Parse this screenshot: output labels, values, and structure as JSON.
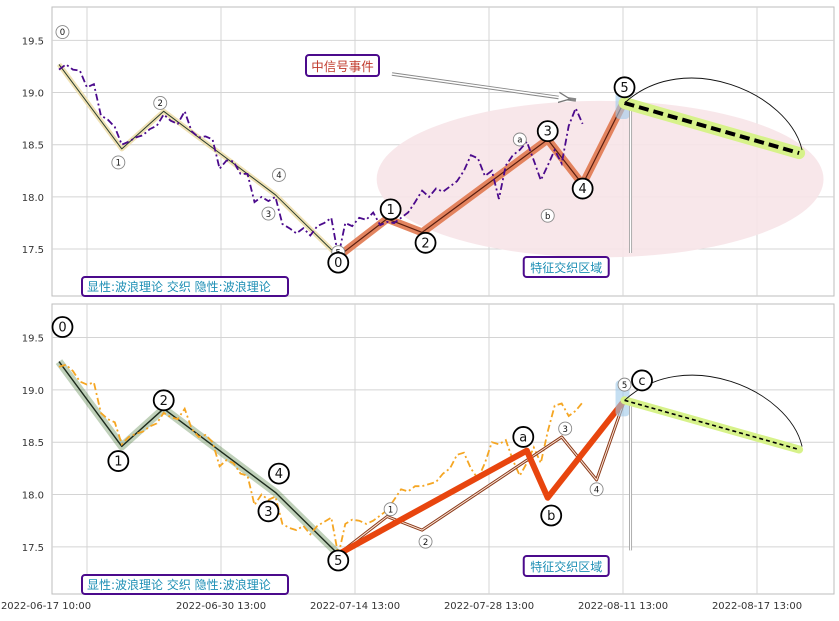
{
  "chart_data": {
    "type": "line",
    "x_tick_labels": [
      "2022-06-17 10:00",
      "2022-06-30 13:00",
      "2022-07-14 13:00",
      "2022-07-28 13:00",
      "2022-08-11 13:00",
      "2022-08-17 13:00"
    ],
    "y_ticks": [
      17.5,
      18.0,
      18.5,
      19.0,
      19.5
    ],
    "ylim": [
      17.05,
      19.82
    ],
    "xlim": [
      -1,
      111
    ],
    "grid": true,
    "colors": {
      "zigzag_top": "#e0784f",
      "zigzag_bottom": "#e8450e",
      "wave_glow": "#4a7a3a",
      "forecast": "#d7f28a",
      "dashdot_top": "#4b0a8c",
      "dashdot_bottom": "#f5a623",
      "ellipse": "#f7e4e8",
      "label_box": "#4b0a8c",
      "label_text": "#1e8fb5",
      "event_text": "#c0392b"
    },
    "price_top": [
      [
        0,
        19.22
      ],
      [
        1,
        19.27
      ],
      [
        2,
        19.22
      ],
      [
        3,
        19.21
      ],
      [
        4,
        19.05
      ],
      [
        5,
        19.08
      ],
      [
        6,
        18.78
      ],
      [
        7,
        18.74
      ],
      [
        8,
        18.67
      ],
      [
        9,
        18.5
      ],
      [
        10,
        18.53
      ],
      [
        11,
        18.57
      ],
      [
        12,
        18.59
      ],
      [
        13,
        18.65
      ],
      [
        14,
        18.68
      ],
      [
        15,
        18.79
      ],
      [
        16,
        18.73
      ],
      [
        17,
        18.7
      ],
      [
        18,
        18.82
      ],
      [
        19,
        18.63
      ],
      [
        20,
        18.57
      ],
      [
        21,
        18.58
      ],
      [
        22,
        18.55
      ],
      [
        23,
        18.27
      ],
      [
        24,
        18.35
      ],
      [
        25,
        18.34
      ],
      [
        26,
        18.22
      ],
      [
        27,
        18.22
      ],
      [
        28,
        17.95
      ],
      [
        29,
        18.0
      ],
      [
        30,
        17.96
      ],
      [
        31,
        18.0
      ],
      [
        32,
        17.74
      ],
      [
        33,
        17.7
      ],
      [
        34,
        17.65
      ],
      [
        35,
        17.7
      ],
      [
        36,
        17.63
      ],
      [
        37,
        17.72
      ],
      [
        38,
        17.75
      ],
      [
        39,
        17.8
      ],
      [
        40,
        17.43
      ],
      [
        41,
        17.75
      ],
      [
        42,
        17.72
      ],
      [
        43,
        17.8
      ],
      [
        44,
        17.78
      ],
      [
        45,
        17.85
      ],
      [
        46,
        17.73
      ],
      [
        47,
        17.76
      ],
      [
        48,
        17.75
      ],
      [
        49,
        17.8
      ],
      [
        50,
        17.85
      ],
      [
        51,
        17.95
      ],
      [
        52,
        18.06
      ],
      [
        53,
        18.0
      ],
      [
        54,
        18.08
      ],
      [
        55,
        18.05
      ],
      [
        56,
        18.1
      ],
      [
        57,
        18.15
      ],
      [
        58,
        18.25
      ],
      [
        59,
        18.4
      ],
      [
        60,
        18.37
      ],
      [
        61,
        18.2
      ],
      [
        62,
        18.25
      ],
      [
        63,
        17.98
      ],
      [
        64,
        18.3
      ],
      [
        65,
        18.4
      ],
      [
        66,
        18.45
      ],
      [
        67,
        18.53
      ],
      [
        68,
        18.35
      ],
      [
        69,
        18.16
      ],
      [
        70,
        18.3
      ],
      [
        71,
        18.45
      ],
      [
        72,
        18.32
      ],
      [
        73,
        18.68
      ],
      [
        74,
        18.85
      ],
      [
        75,
        18.7
      ]
    ],
    "price_bottom": [
      [
        0,
        19.22
      ],
      [
        1,
        19.24
      ],
      [
        2,
        19.18
      ],
      [
        3,
        19.08
      ],
      [
        4,
        19.05
      ],
      [
        5,
        19.07
      ],
      [
        6,
        18.78
      ],
      [
        7,
        18.72
      ],
      [
        8,
        18.69
      ],
      [
        9,
        18.48
      ],
      [
        10,
        18.55
      ],
      [
        11,
        18.58
      ],
      [
        12,
        18.6
      ],
      [
        13,
        18.65
      ],
      [
        14,
        18.68
      ],
      [
        15,
        18.78
      ],
      [
        16,
        18.74
      ],
      [
        17,
        18.72
      ],
      [
        18,
        18.82
      ],
      [
        19,
        18.63
      ],
      [
        20,
        18.55
      ],
      [
        21,
        18.57
      ],
      [
        22,
        18.5
      ],
      [
        23,
        18.27
      ],
      [
        24,
        18.33
      ],
      [
        25,
        18.3
      ],
      [
        26,
        18.2
      ],
      [
        27,
        18.18
      ],
      [
        28,
        17.9
      ],
      [
        29,
        18.0
      ],
      [
        30,
        17.95
      ],
      [
        31,
        17.98
      ],
      [
        32,
        17.72
      ],
      [
        33,
        17.68
      ],
      [
        34,
        17.66
      ],
      [
        35,
        17.7
      ],
      [
        36,
        17.62
      ],
      [
        37,
        17.7
      ],
      [
        38,
        17.74
      ],
      [
        39,
        17.78
      ],
      [
        40,
        17.42
      ],
      [
        41,
        17.72
      ],
      [
        42,
        17.76
      ],
      [
        43,
        17.75
      ],
      [
        44,
        17.72
      ],
      [
        45,
        17.75
      ],
      [
        46,
        17.8
      ],
      [
        47,
        17.85
      ],
      [
        48,
        17.95
      ],
      [
        49,
        18.05
      ],
      [
        50,
        18.03
      ],
      [
        51,
        18.08
      ],
      [
        52,
        18.08
      ],
      [
        53,
        18.1
      ],
      [
        54,
        18.12
      ],
      [
        55,
        18.2
      ],
      [
        56,
        18.25
      ],
      [
        57,
        18.38
      ],
      [
        58,
        18.4
      ],
      [
        59,
        18.25
      ],
      [
        60,
        18.15
      ],
      [
        61,
        18.3
      ],
      [
        62,
        18.5
      ],
      [
        63,
        18.48
      ],
      [
        64,
        18.52
      ],
      [
        65,
        18.33
      ],
      [
        66,
        18.18
      ],
      [
        67,
        18.3
      ],
      [
        68,
        18.45
      ],
      [
        69,
        18.3
      ],
      [
        70,
        18.6
      ],
      [
        71,
        18.85
      ],
      [
        72,
        18.87
      ],
      [
        73,
        18.75
      ],
      [
        74,
        18.8
      ],
      [
        75,
        18.88
      ]
    ],
    "panels": [
      {
        "label_box": "显性:波浪理论 交织 隐性:波浪理论",
        "region_label": "特征交织区域",
        "event_label": "中信号事件",
        "small_wave": [
          [
            0,
            19.27
          ],
          [
            9,
            18.46
          ],
          [
            15,
            18.82
          ],
          [
            31,
            18.02
          ],
          [
            40,
            17.43
          ]
        ],
        "small_labels": [
          {
            "text": "0",
            "x": 0.5,
            "y": 19.58
          },
          {
            "text": "1",
            "x": 8.5,
            "y": 18.33
          },
          {
            "text": "2",
            "x": 14.5,
            "y": 18.9
          },
          {
            "text": "3",
            "x": 30.0,
            "y": 17.84
          },
          {
            "text": "4",
            "x": 31.5,
            "y": 18.21
          },
          {
            "text": "5",
            "x": 40.0,
            "y": 17.47
          },
          {
            "text": "a",
            "x": 66.0,
            "y": 18.55
          },
          {
            "text": "b",
            "x": 70.0,
            "y": 17.82
          },
          {
            "text": "c",
            "x": 81.5,
            "y": 19.04
          }
        ],
        "big_wave": [
          [
            40,
            17.43
          ],
          [
            47,
            17.79
          ],
          [
            52,
            17.66
          ],
          [
            70,
            18.55
          ],
          [
            75,
            18.12
          ],
          [
            81,
            18.92
          ]
        ],
        "big_labels": [
          {
            "text": "0",
            "x": 40.0,
            "y": 17.37
          },
          {
            "text": "1",
            "x": 47.5,
            "y": 17.88
          },
          {
            "text": "2",
            "x": 52.5,
            "y": 17.56
          },
          {
            "text": "3",
            "x": 70.0,
            "y": 18.63
          },
          {
            "text": "4",
            "x": 75.0,
            "y": 18.08
          },
          {
            "text": "5",
            "x": 81.0,
            "y": 19.05
          }
        ],
        "forecast": [
          [
            81,
            18.9
          ],
          [
            106,
            18.42
          ]
        ],
        "ellipse": {
          "cx": 77.5,
          "cy": 18.17,
          "rx": 32,
          "ry": 0.75
        }
      },
      {
        "label_box": "显性:波浪理论 交织 隐性:波浪理论",
        "region_label": "特征交织区域",
        "small_wave": [
          [
            40,
            17.43
          ],
          [
            47,
            17.79
          ],
          [
            52,
            17.66
          ],
          [
            72,
            18.55
          ],
          [
            77,
            18.14
          ],
          [
            81,
            18.9
          ]
        ],
        "small_labels": [
          {
            "text": "1",
            "x": 47.5,
            "y": 17.86
          },
          {
            "text": "2",
            "x": 52.5,
            "y": 17.55
          },
          {
            "text": "3",
            "x": 72.5,
            "y": 18.63
          },
          {
            "text": "4",
            "x": 77.0,
            "y": 18.05
          },
          {
            "text": "5",
            "x": 81.0,
            "y": 19.05
          }
        ],
        "big_wave": [
          [
            0,
            19.27
          ],
          [
            9,
            18.46
          ],
          [
            15,
            18.82
          ],
          [
            31,
            18.02
          ],
          [
            40,
            17.43
          ]
        ],
        "big_labels": [
          {
            "text": "0",
            "x": 0.5,
            "y": 19.6
          },
          {
            "text": "1",
            "x": 8.5,
            "y": 18.32
          },
          {
            "text": "2",
            "x": 15.0,
            "y": 18.9
          },
          {
            "text": "3",
            "x": 30.0,
            "y": 17.84
          },
          {
            "text": "4",
            "x": 31.5,
            "y": 18.2
          },
          {
            "text": "5",
            "x": 40.0,
            "y": 17.37
          }
        ],
        "abc_wave": [
          [
            40,
            17.43
          ],
          [
            67,
            18.42
          ],
          [
            70,
            17.97
          ],
          [
            81,
            18.9
          ]
        ],
        "abc_labels": [
          {
            "text": "a",
            "x": 66.5,
            "y": 18.55
          },
          {
            "text": "b",
            "x": 70.5,
            "y": 17.8
          },
          {
            "text": "c",
            "x": 83.5,
            "y": 19.09
          }
        ],
        "forecast": [
          [
            81,
            18.9
          ],
          [
            106,
            18.43
          ]
        ]
      }
    ]
  }
}
